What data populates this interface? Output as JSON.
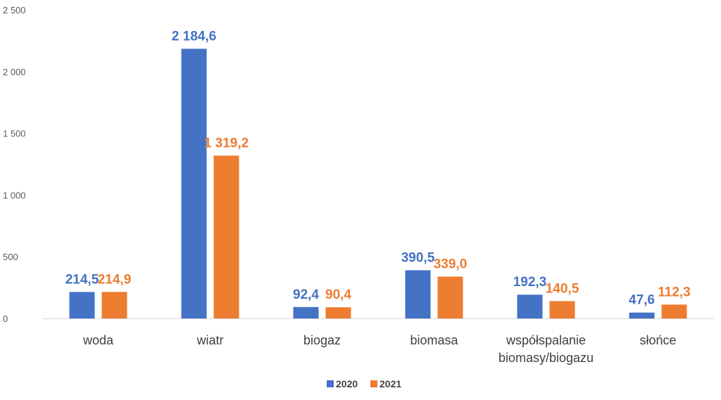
{
  "chart_data": {
    "type": "bar",
    "categories": [
      [
        "woda"
      ],
      [
        "wiatr"
      ],
      [
        "biogaz"
      ],
      [
        "biomasa"
      ],
      [
        "współspalanie",
        "biomasy/biogazu"
      ],
      [
        "słońce"
      ]
    ],
    "series": [
      {
        "name": "2020",
        "color": "#4472C4",
        "values": [
          214.5,
          2184.6,
          92.4,
          390.5,
          192.3,
          47.6
        ],
        "labels": [
          "214,5",
          "2 184,6",
          "92,4",
          "390,5",
          "192,3",
          "47,6"
        ]
      },
      {
        "name": "2021",
        "color": "#ED7D31",
        "values": [
          214.9,
          1319.2,
          90.4,
          339.0,
          140.5,
          112.3
        ],
        "labels": [
          "214,9",
          "1 319,2",
          "90,4",
          "339,0",
          "140,5",
          "112,3"
        ]
      }
    ],
    "yticks": [
      "0",
      "500",
      "1 000",
      "1 500",
      "2 000",
      "2 500"
    ],
    "ylim": [
      0,
      2500
    ],
    "grid": false,
    "legend": "bottom-center"
  }
}
